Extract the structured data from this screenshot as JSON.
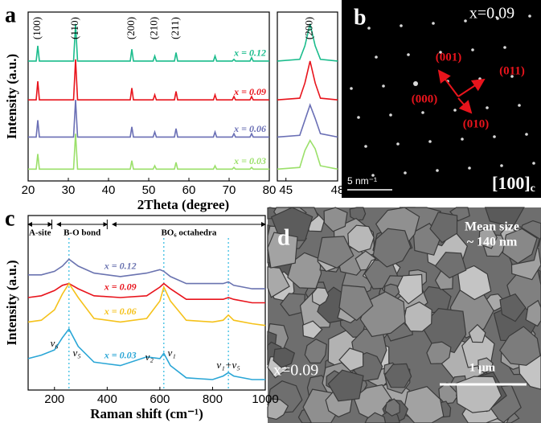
{
  "chart_data": [
    {
      "type": "line",
      "panel": "a",
      "xlabel": "2Theta (degree)",
      "ylabel": "Intensity (a.u.)",
      "xlim": [
        20,
        80
      ],
      "xticks": [
        20,
        30,
        40,
        50,
        60,
        70,
        80
      ],
      "ylim": [
        0,
        100
      ],
      "x": [
        20,
        22.0,
        22.4,
        22.8,
        31.3,
        31.8,
        32.3,
        45.4,
        45.8,
        46.2,
        51.1,
        51.5,
        51.9,
        56.4,
        56.8,
        57.2,
        66.1,
        66.5,
        66.9,
        70.8,
        71.2,
        71.6,
        75.2,
        75.6,
        76.0,
        80
      ],
      "annotations": [
        {
          "text": "(100)",
          "x": 22.4
        },
        {
          "text": "(110)",
          "x": 31.8
        },
        {
          "text": "(200)",
          "x": 45.8
        },
        {
          "text": "(210)",
          "x": 51.5
        },
        {
          "text": "(211)",
          "x": 56.8
        }
      ],
      "series": [
        {
          "name": "x = 0.12",
          "color": "#1abc8c",
          "values": [
            71,
            71,
            80,
            71,
            71,
            93,
            71,
            71,
            78,
            71,
            71,
            74,
            71,
            71,
            76,
            71,
            71,
            74,
            71,
            71,
            72,
            71,
            71,
            73,
            71,
            71
          ]
        },
        {
          "name": "x = 0.09",
          "color": "#e8141c",
          "values": [
            48,
            48,
            59,
            48,
            48,
            72,
            48,
            48,
            55,
            48,
            48,
            51,
            48,
            48,
            53,
            48,
            48,
            51,
            48,
            48,
            50,
            48,
            48,
            50,
            48,
            48
          ]
        },
        {
          "name": "x = 0.06",
          "color": "#6a6fb5",
          "values": [
            26,
            26,
            36,
            26,
            26,
            48,
            26,
            26,
            32,
            26,
            26,
            29,
            26,
            26,
            31,
            26,
            26,
            29,
            26,
            26,
            28,
            26,
            26,
            28,
            26,
            26
          ]
        },
        {
          "name": "x = 0.03",
          "color": "#9be06a",
          "values": [
            7,
            7,
            16,
            7,
            7,
            28,
            7,
            7,
            12,
            7,
            7,
            9,
            7,
            7,
            11,
            7,
            7,
            9,
            7,
            7,
            8,
            7,
            7,
            8,
            7,
            7
          ]
        }
      ]
    },
    {
      "type": "line",
      "xlim": [
        44.5,
        48
      ],
      "xticks": [
        45,
        48
      ],
      "ylim": [
        0,
        100
      ],
      "x": [
        44.5,
        45.8,
        46.1,
        46.4,
        46.7,
        47.0,
        48
      ],
      "annotations": [
        {
          "text": "(200)",
          "x": 46.4
        }
      ],
      "series": [
        {
          "color": "#1abc8c",
          "values": [
            71,
            72,
            80,
            93,
            80,
            72,
            71
          ]
        },
        {
          "color": "#e8141c",
          "values": [
            48,
            49,
            58,
            71,
            58,
            49,
            48
          ]
        },
        {
          "color": "#6a6fb5",
          "values": [
            26,
            27,
            36,
            45,
            37,
            28,
            26
          ]
        },
        {
          "color": "#9be06a",
          "values": [
            7,
            8,
            18,
            24,
            19,
            9,
            7
          ]
        }
      ]
    },
    {
      "type": "line",
      "panel": "c",
      "xlabel": "Raman shift (cm⁻¹)",
      "ylabel": "Intensity (a.u.)",
      "xlim": [
        100,
        1000
      ],
      "xticks": [
        200,
        400,
        600,
        800,
        1000
      ],
      "ylim": [
        0,
        100
      ],
      "x": [
        100,
        150,
        200,
        230,
        255,
        290,
        350,
        450,
        550,
        600,
        615,
        640,
        700,
        800,
        840,
        860,
        880,
        950,
        1000
      ],
      "regions": [
        {
          "text": "A-site",
          "range": [
            100,
            190
          ]
        },
        {
          "text": "B-O bond",
          "range": [
            210,
            400
          ]
        },
        {
          "text": "BO₆ octahedra",
          "range": [
            420,
            1000
          ]
        }
      ],
      "guides": [
        255,
        615,
        860
      ],
      "annotations": [
        {
          "text": "ν₆",
          "x": 200
        },
        {
          "text": "ν₅",
          "x": 285
        },
        {
          "text": "ν₂",
          "x": 560
        },
        {
          "text": "ν₁",
          "x": 645
        },
        {
          "text": "ν₁+ν₅",
          "x": 860
        }
      ],
      "series": [
        {
          "name": "x = 0.12",
          "color": "#6a73b0",
          "values": [
            66,
            66,
            68,
            71,
            75,
            71,
            67,
            65,
            67,
            69,
            68,
            65,
            61,
            61,
            61,
            62,
            60,
            58,
            58
          ]
        },
        {
          "name": "x = 0.09",
          "color": "#e8141c",
          "values": [
            53,
            54,
            57,
            60,
            61,
            58,
            54,
            53,
            54,
            59,
            61,
            58,
            52,
            52,
            52,
            53,
            52,
            50,
            50
          ]
        },
        {
          "name": "x = 0.06",
          "color": "#f5c21b",
          "values": [
            39,
            40,
            46,
            55,
            61,
            53,
            41,
            39,
            41,
            51,
            59,
            51,
            40,
            39,
            40,
            43,
            40,
            38,
            37
          ]
        },
        {
          "name": "x = 0.03",
          "color": "#2aa6d6",
          "values": [
            18,
            20,
            23,
            30,
            35,
            25,
            16,
            14,
            19,
            18,
            21,
            14,
            7,
            6,
            8,
            10,
            8,
            6,
            6
          ]
        }
      ]
    }
  ],
  "saed": {
    "panel": "b",
    "composition": "x=0.09",
    "spots": [
      "(001)",
      "(011)",
      "(000)",
      "(010)"
    ],
    "scale_bar": "5 nm⁻¹",
    "zone_axis": {
      "index": "[100]",
      "subscript": "c"
    }
  },
  "sem": {
    "panel": "d",
    "mean_size": "Mean size",
    "size_value": "~ 140 nm",
    "composition": "x=0.09",
    "scale_bar": "1 μm"
  }
}
